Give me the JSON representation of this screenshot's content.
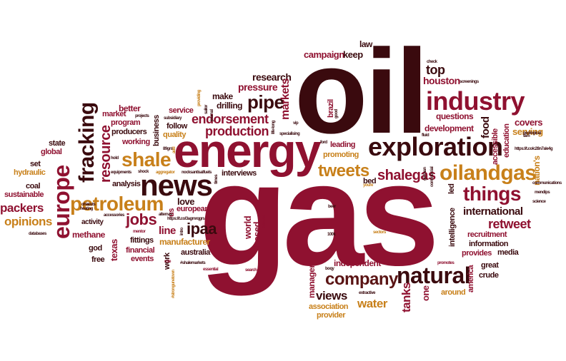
{
  "colors": {
    "dark": "#3a0a0e",
    "crimson": "#8f1130",
    "gold": "#c8801a",
    "brown": "#6e2a10",
    "maroon": "#5a1414"
  },
  "words": [
    {
      "text": "gas",
      "color": "crimson"
    },
    {
      "text": "oil",
      "color": "dark"
    },
    {
      "text": "energy",
      "color": "crimson"
    },
    {
      "text": "news",
      "color": "dark"
    },
    {
      "text": "exploration",
      "color": "dark"
    },
    {
      "text": "industry",
      "color": "crimson"
    },
    {
      "text": "oilandgas",
      "color": "gold"
    },
    {
      "text": "things",
      "color": "crimson"
    },
    {
      "text": "natural",
      "color": "dark"
    },
    {
      "text": "petroleum",
      "color": "gold"
    },
    {
      "text": "europe",
      "color": "crimson"
    },
    {
      "text": "fracking",
      "color": "dark"
    },
    {
      "text": "shale",
      "color": "gold"
    },
    {
      "text": "tweets",
      "color": "gold"
    },
    {
      "text": "company",
      "color": "maroon"
    },
    {
      "text": "pipe",
      "color": "dark"
    },
    {
      "text": "production",
      "color": "crimson"
    },
    {
      "text": "endorsement",
      "color": "crimson"
    },
    {
      "text": "shalegas",
      "color": "crimson"
    },
    {
      "text": "jobs",
      "color": "crimson"
    },
    {
      "text": "ipaa",
      "color": "dark"
    },
    {
      "text": "international",
      "color": "dark"
    },
    {
      "text": "retweet",
      "color": "crimson"
    },
    {
      "text": "resource",
      "color": "crimson"
    },
    {
      "text": "opinions",
      "color": "gold"
    },
    {
      "text": "packers",
      "color": "crimson"
    },
    {
      "text": "water",
      "color": "gold"
    },
    {
      "text": "views",
      "color": "dark"
    },
    {
      "text": "houston",
      "color": "crimson"
    },
    {
      "text": "top",
      "color": "dark"
    },
    {
      "text": "research",
      "color": "dark"
    },
    {
      "text": "pressure",
      "color": "crimson"
    },
    {
      "text": "campaign",
      "color": "crimson"
    },
    {
      "text": "keep",
      "color": "dark"
    },
    {
      "text": "law",
      "color": "dark"
    },
    {
      "text": "make",
      "color": "dark"
    },
    {
      "text": "drilling",
      "color": "dark"
    },
    {
      "text": "markets",
      "color": "crimson"
    },
    {
      "text": "questions",
      "color": "crimson"
    },
    {
      "text": "development",
      "color": "crimson"
    },
    {
      "text": "food",
      "color": "dark"
    },
    {
      "text": "covers",
      "color": "crimson"
    },
    {
      "text": "serving",
      "color": "gold"
    },
    {
      "text": "education",
      "color": "crimson"
    },
    {
      "text": "accessible",
      "color": "crimson"
    },
    {
      "text": "nation's",
      "color": "gold"
    },
    {
      "text": "mendips",
      "color": "dark"
    },
    {
      "text": "science",
      "color": "dark"
    },
    {
      "text": "communications",
      "color": "dark"
    },
    {
      "text": "geological",
      "color": "dark"
    },
    {
      "text": "screenings",
      "color": "dark"
    },
    {
      "text": "check",
      "color": "dark"
    },
    {
      "text": "better",
      "color": "crimson"
    },
    {
      "text": "market",
      "color": "crimson"
    },
    {
      "text": "program",
      "color": "crimson"
    },
    {
      "text": "producers",
      "color": "dark"
    },
    {
      "text": "working",
      "color": "crimson"
    },
    {
      "text": "service",
      "color": "crimson"
    },
    {
      "text": "follow",
      "color": "dark"
    },
    {
      "text": "quality",
      "color": "gold"
    },
    {
      "text": "business",
      "color": "dark"
    },
    {
      "text": "state",
      "color": "dark"
    },
    {
      "text": "global",
      "color": "crimson"
    },
    {
      "text": "set",
      "color": "dark"
    },
    {
      "text": "hydraulic",
      "color": "gold"
    },
    {
      "text": "coal",
      "color": "dark"
    },
    {
      "text": "sustainable",
      "color": "crimson"
    },
    {
      "text": "analysis",
      "color": "dark"
    },
    {
      "text": "love",
      "color": "dark"
    },
    {
      "text": "european",
      "color": "crimson"
    },
    {
      "text": "line",
      "color": "crimson"
    },
    {
      "text": "manufacturer",
      "color": "gold"
    },
    {
      "text": "australia",
      "color": "dark"
    },
    {
      "text": "activity",
      "color": "dark"
    },
    {
      "text": "methane",
      "color": "crimson"
    },
    {
      "text": "god",
      "color": "dark"
    },
    {
      "text": "free",
      "color": "dark"
    },
    {
      "text": "texas",
      "color": "crimson"
    },
    {
      "text": "fittings",
      "color": "dark"
    },
    {
      "text": "financial",
      "color": "crimson"
    },
    {
      "text": "events",
      "color": "crimson"
    },
    {
      "text": "work",
      "color": "dark"
    },
    {
      "text": "us",
      "color": "crimson"
    },
    {
      "text": "interviews",
      "color": "dark"
    },
    {
      "text": "leading",
      "color": "crimson"
    },
    {
      "text": "promoting",
      "color": "gold"
    },
    {
      "text": "bed",
      "color": "dark"
    },
    {
      "text": "world",
      "color": "crimson"
    },
    {
      "text": "based",
      "color": "crimson"
    },
    {
      "text": "independent",
      "color": "crimson"
    },
    {
      "text": "manager",
      "color": "crimson"
    },
    {
      "text": "association",
      "color": "gold"
    },
    {
      "text": "provider",
      "color": "gold"
    },
    {
      "text": "tanks",
      "color": "crimson"
    },
    {
      "text": "one",
      "color": "crimson"
    },
    {
      "text": "around",
      "color": "gold"
    },
    {
      "text": "intelligence",
      "color": "dark"
    },
    {
      "text": "recruitment",
      "color": "crimson"
    },
    {
      "text": "information",
      "color": "dark"
    },
    {
      "text": "provides",
      "color": "crimson"
    },
    {
      "text": "media",
      "color": "dark"
    },
    {
      "text": "great",
      "color": "dark"
    },
    {
      "text": "crude",
      "color": "dark"
    },
    {
      "text": "america",
      "color": "crimson"
    },
    {
      "text": "led",
      "color": "dark"
    },
    {
      "text": "brazil",
      "color": "crimson"
    },
    {
      "text": "databases",
      "color": "dark"
    },
    {
      "text": "accessories",
      "color": "dark"
    },
    {
      "text": "#shalemarkets",
      "color": "dark"
    },
    {
      "text": "sectors",
      "color": "gold"
    },
    {
      "text": "promotes",
      "color": "crimson"
    },
    {
      "text": "extractive",
      "color": "dark"
    },
    {
      "text": "100k",
      "color": "dark"
    },
    {
      "text": "beer",
      "color": "dark"
    },
    {
      "text": "search",
      "color": "crimson"
    },
    {
      "text": "essential",
      "color": "crimson"
    },
    {
      "text": "mentor",
      "color": "crimson"
    },
    {
      "text": "alternas",
      "color": "dark"
    },
    {
      "text": "shock",
      "color": "dark"
    },
    {
      "text": "hold",
      "color": "dark"
    },
    {
      "text": "equipments",
      "color": "dark"
    },
    {
      "text": "aggregator",
      "color": "gold"
    },
    {
      "text": "nocksantisalfuels",
      "color": "dark"
    },
    {
      "text": "https://t.co/3agmrqgrs",
      "color": "dark"
    },
    {
      "text": "https://t.co/c28n7ale4g",
      "color": "dark"
    },
    {
      "text": "specialising",
      "color": "dark"
    },
    {
      "text": "ford",
      "color": "dark"
    },
    {
      "text": "fluid",
      "color": "dark"
    },
    {
      "text": "tam",
      "color": "dark"
    },
    {
      "text": "youre",
      "color": "gold"
    },
    {
      "text": "answer",
      "color": "crimson"
    },
    {
      "text": "boqy",
      "color": "dark"
    },
    {
      "text": "projects",
      "color": "dark"
    },
    {
      "text": "subsidiary",
      "color": "dark"
    },
    {
      "text": "heating",
      "color": "dark"
    },
    {
      "text": "cuts",
      "color": "dark"
    },
    {
      "text": "vip",
      "color": "dark"
    },
    {
      "text": "#strongunetown",
      "color": "gold"
    },
    {
      "text": "89grs",
      "color": "dark"
    },
    {
      "text": "journal",
      "color": "dark"
    },
    {
      "text": "providing",
      "color": "gold"
    },
    {
      "text": "sailor",
      "color": "dark"
    },
    {
      "text": "life-long",
      "color": "dark"
    },
    {
      "text": "good",
      "color": "dark"
    },
    {
      "text": "german",
      "color": "dark"
    },
    {
      "text": "commercial",
      "color": "dark"
    },
    {
      "text": "ohio",
      "color": "dark"
    },
    {
      "text": "times",
      "color": "dark"
    },
    {
      "text": "add",
      "color": "gold"
    },
    {
      "text": "intro",
      "color": "dark"
    },
    {
      "text": "role",
      "color": "crimson"
    }
  ]
}
